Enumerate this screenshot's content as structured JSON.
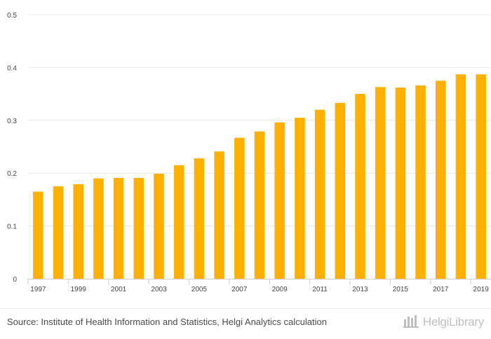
{
  "chart_data": {
    "type": "bar",
    "title": "",
    "xlabel": "",
    "ylabel": "",
    "ylim": [
      0,
      0.5
    ],
    "yticks": [
      0,
      0.1,
      0.2,
      0.3,
      0.4,
      0.5
    ],
    "ytick_labels": [
      "0",
      "0.1",
      "0.2",
      "0.3",
      "0.4",
      "0.5"
    ],
    "categories": [
      "1997",
      "1998",
      "1999",
      "2000",
      "2001",
      "2002",
      "2003",
      "2004",
      "2005",
      "2006",
      "2007",
      "2008",
      "2009",
      "2010",
      "2011",
      "2012",
      "2013",
      "2014",
      "2015",
      "2016",
      "2017",
      "2018",
      "2019"
    ],
    "xtick_labels": [
      "1997",
      "1999",
      "2001",
      "2003",
      "2005",
      "2007",
      "2009",
      "2011",
      "2013",
      "2015",
      "2017",
      "2019"
    ],
    "values": [
      0.165,
      0.175,
      0.179,
      0.19,
      0.191,
      0.191,
      0.199,
      0.215,
      0.228,
      0.241,
      0.267,
      0.279,
      0.296,
      0.305,
      0.32,
      0.333,
      0.35,
      0.363,
      0.362,
      0.366,
      0.375,
      0.387,
      0.387
    ],
    "bar_color": "#ffb000",
    "grid": true,
    "legend": "none"
  },
  "footer": {
    "source": "Source: Institute of Health Information and Statistics, Helgi Analytics calculation",
    "logo_text": "HelgiLibrary"
  },
  "icons": {
    "logo_icon": "helgi-library-icon"
  }
}
